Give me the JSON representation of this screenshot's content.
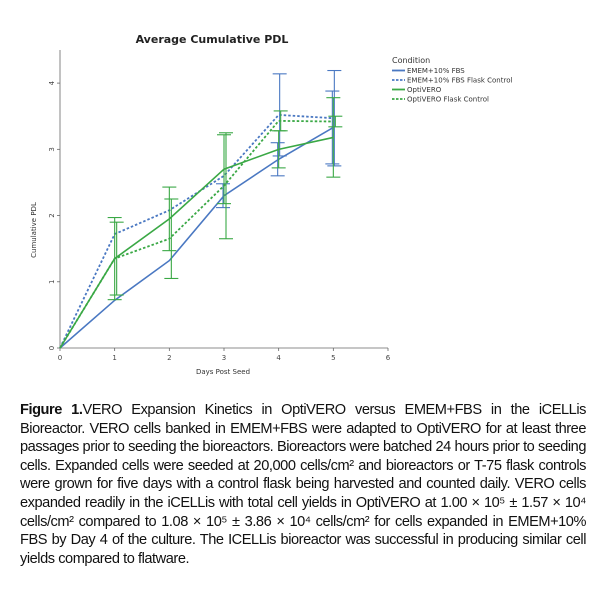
{
  "chart_data": {
    "type": "line",
    "title": "Average Cumulative PDL",
    "xlabel": "Days Post Seed",
    "ylabel": "Cumulative PDL",
    "xlim": [
      0,
      6
    ],
    "ylim": [
      0,
      4.5
    ],
    "xticks": [
      0,
      1,
      2,
      3,
      4,
      5,
      6
    ],
    "yticks": [
      0,
      1,
      2,
      3,
      4
    ],
    "legend_title": "Condition",
    "legend_position": "top-right",
    "grid": false,
    "series": [
      {
        "name": "EMEM+10% FBS",
        "color": "#4a78c2",
        "dash": "solid",
        "x": [
          0,
          1,
          2,
          3,
          4,
          5
        ],
        "y": [
          0,
          0.72,
          1.32,
          2.3,
          2.85,
          3.33
        ],
        "error": [
          null,
          null,
          null,
          0.18,
          0.25,
          0.55
        ]
      },
      {
        "name": "EMEM+10% FBS Flask Control",
        "color": "#4a78c2",
        "dash": "dashed",
        "x": [
          0,
          1,
          2,
          3,
          4,
          5
        ],
        "y": [
          0,
          1.72,
          2.08,
          2.6,
          3.52,
          3.47
        ],
        "error": [
          null,
          null,
          null,
          null,
          0.62,
          0.72
        ]
      },
      {
        "name": "OptiVERO",
        "color": "#3aa845",
        "dash": "solid",
        "x": [
          0,
          1,
          2,
          3,
          4,
          5
        ],
        "y": [
          0,
          1.35,
          1.95,
          2.7,
          3.0,
          3.18
        ],
        "error": [
          null,
          0.62,
          0.48,
          0.52,
          0.28,
          0.6
        ]
      },
      {
        "name": "OptiVERO Flask Control",
        "color": "#3aa845",
        "dash": "dashed",
        "x": [
          0,
          1,
          2,
          3,
          4,
          5
        ],
        "y": [
          0,
          1.35,
          1.65,
          2.45,
          3.43,
          3.42
        ],
        "error": [
          null,
          0.55,
          0.6,
          0.8,
          0.15,
          0.08
        ]
      }
    ]
  },
  "caption": {
    "label": "Figure 1.",
    "text": "VERO Expansion Kinetics in OptiVERO versus EMEM+FBS in the iCELLis Bioreactor. VERO cells banked in EMEM+FBS were adapted to OptiVERO for at least three passages prior to seeding the bioreactors. Bioreactors were batched 24 hours prior to seeding cells. Expanded cells were seeded at 20,000 cells/cm² and bioreactors or T-75 flask controls were grown for five days with a control flask being harvested and counted daily. VERO cells expanded readily in the iCELLis with total cell yields in OptiVERO at 1.00 × 10⁵ ± 1.57 × 10⁴ cells/cm² compared to 1.08 × 10⁵ ± 3.86 × 10⁴ cells/cm² for cells expanded in EMEM+10% FBS by Day 4 of the culture. The ICELLis bioreactor was successful in producing similar cell yields compared to flatware."
  }
}
